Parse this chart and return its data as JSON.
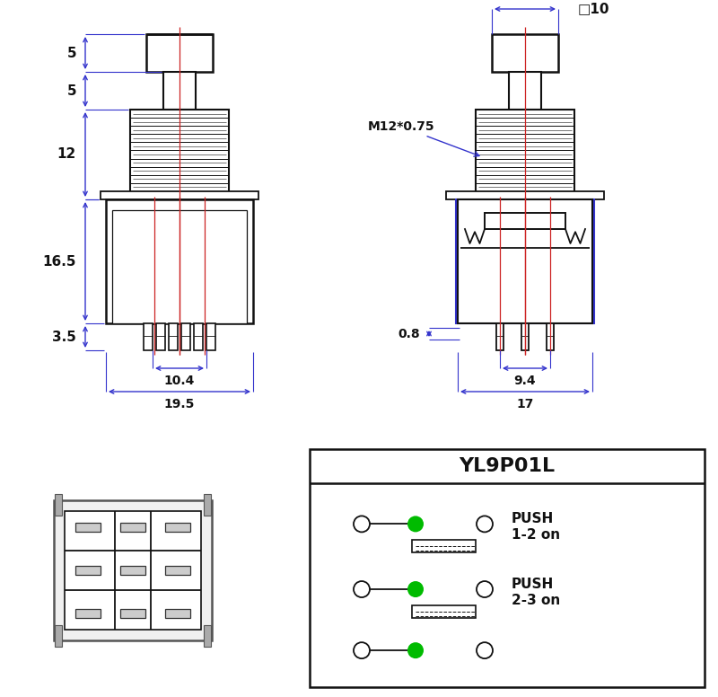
{
  "bg": "#ffffff",
  "lc": "#111111",
  "bc": "#3333cc",
  "rc": "#cc2222",
  "gc": "#00bb00",
  "dims_left": [
    "5",
    "5",
    "12",
    "16.5",
    "3.5",
    "10.4",
    "19.5"
  ],
  "dims_right": [
    "□10",
    "M12*0.75",
    "0.8",
    "9.4",
    "17"
  ],
  "schematic_title": "YL9P01L",
  "schematic_rows": [
    {
      "label1": "PUSH",
      "label2": "1-2 on",
      "has_dot": true,
      "has_contact": true
    },
    {
      "label1": "PUSH",
      "label2": "2-3 on",
      "has_dot": true,
      "has_contact": true
    },
    {
      "label1": "",
      "label2": "",
      "has_dot": true,
      "has_contact": false
    }
  ]
}
